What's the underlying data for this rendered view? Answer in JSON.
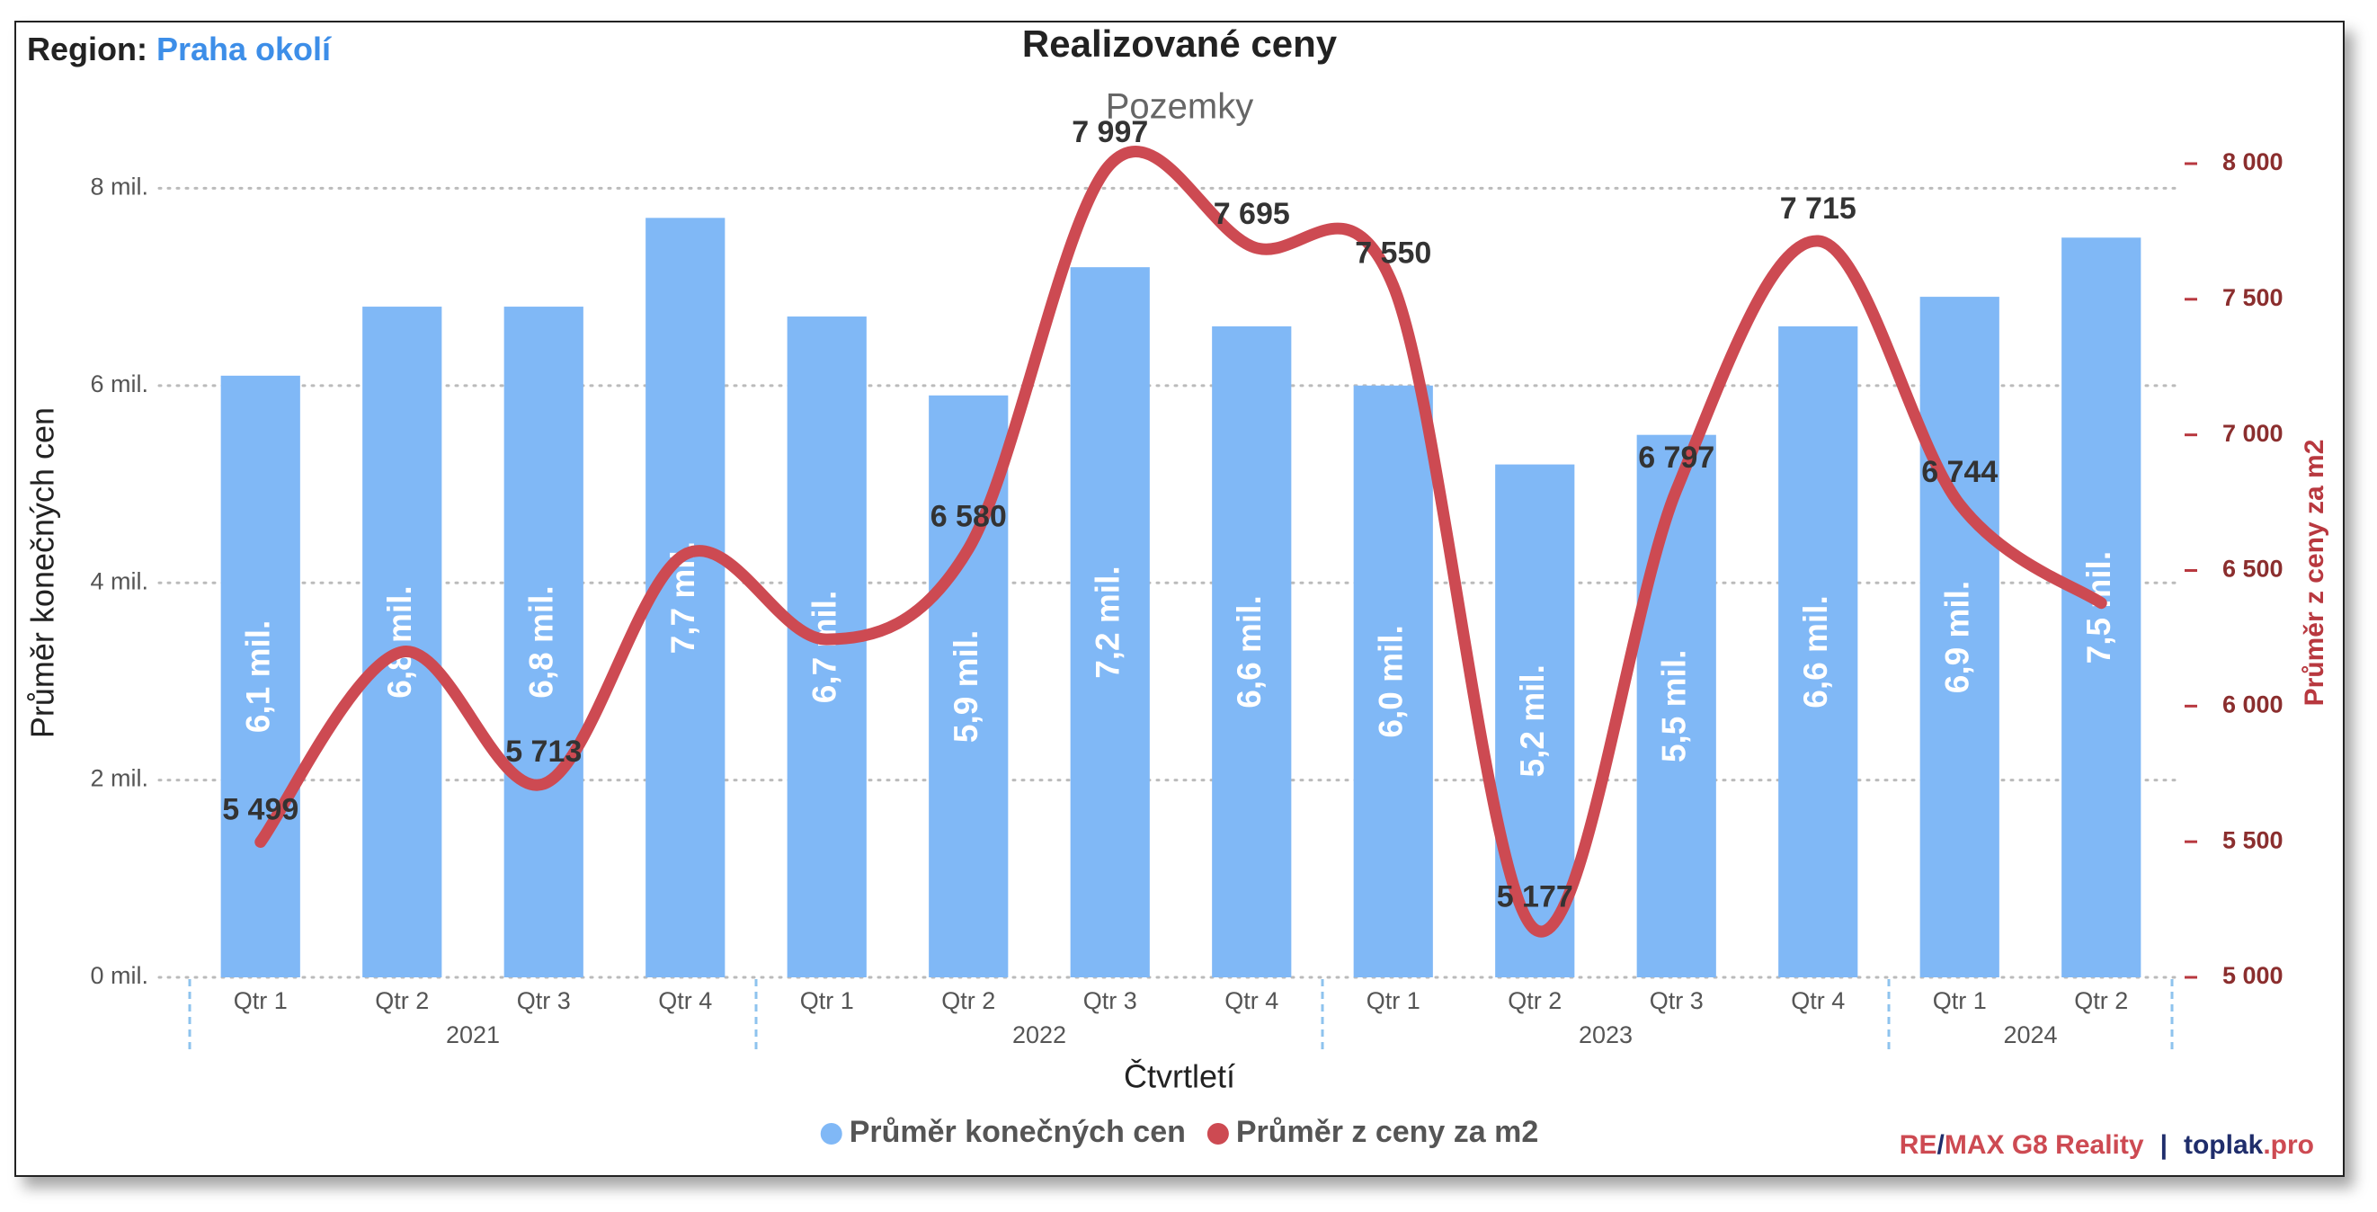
{
  "chart_data": {
    "type": "bar-line",
    "header": {
      "region_label": "Region:",
      "region": "Praha okolí"
    },
    "title": "Realizované ceny",
    "subtitle": "Pozemky",
    "xlabel": "Čtvrtletí",
    "ylabel": "Průměr konečných cen",
    "y2label": "Průměr z ceny za m2",
    "categories": [
      "Qtr 1",
      "Qtr 2",
      "Qtr 3",
      "Qtr 4",
      "Qtr 1",
      "Qtr 2",
      "Qtr 3",
      "Qtr 4",
      "Qtr 1",
      "Qtr 2",
      "Qtr 3",
      "Qtr 4",
      "Qtr 1",
      "Qtr 2"
    ],
    "x_groups": [
      "2021",
      "2021",
      "2021",
      "2021",
      "2022",
      "2022",
      "2022",
      "2022",
      "2023",
      "2023",
      "2023",
      "2023",
      "2024",
      "2024"
    ],
    "series": [
      {
        "name": "Průměr konečných cen",
        "type": "bar",
        "axis": "y",
        "color": "#80b8f6",
        "values": [
          6.1,
          6.8,
          6.8,
          7.7,
          6.7,
          5.9,
          7.2,
          6.6,
          6.0,
          5.2,
          5.5,
          6.6,
          6.9,
          7.5
        ],
        "value_labels": [
          "6,1 mil.",
          "6,8 mil.",
          "6,8 mil.",
          "7,7 mil.",
          "6,7 mil.",
          "5,9 mil.",
          "7,2 mil.",
          "6,6 mil.",
          "6,0 mil.",
          "5,2 mil.",
          "5,5 mil.",
          "6,6 mil.",
          "6,9 mil.",
          "7,5 mil."
        ]
      },
      {
        "name": "Průměr z ceny za m2",
        "type": "line",
        "axis": "y2",
        "color": "#cd4a52",
        "values": [
          5499,
          6200,
          5713,
          6560,
          6246,
          6580,
          7997,
          7695,
          7550,
          5177,
          6797,
          7715,
          6744,
          6380
        ],
        "value_labels": [
          "5 499",
          null,
          "5 713",
          null,
          null,
          "6 580",
          "7 997",
          "7 695",
          "7 550",
          "5 177",
          "6 797",
          "7 715",
          "6 744",
          null
        ]
      }
    ],
    "ylim": [
      0,
      8.25
    ],
    "yticks": [
      {
        "value": 0,
        "label": "0 mil."
      },
      {
        "value": 2,
        "label": "2 mil."
      },
      {
        "value": 4,
        "label": "4 mil."
      },
      {
        "value": 6,
        "label": "6 mil."
      },
      {
        "value": 8,
        "label": "8 mil."
      }
    ],
    "y2lim": [
      5000,
      8000
    ],
    "y2ticks": [
      {
        "value": 5000,
        "label": "5 000"
      },
      {
        "value": 5500,
        "label": "5 500"
      },
      {
        "value": 6000,
        "label": "6 000"
      },
      {
        "value": 6500,
        "label": "6 500"
      },
      {
        "value": 7000,
        "label": "7 000"
      },
      {
        "value": 7500,
        "label": "7 500"
      },
      {
        "value": 8000,
        "label": "8 000"
      }
    ],
    "grid": true,
    "legend": "bottom",
    "footer": {
      "brand_a": "RE",
      "brand_slash": "/",
      "brand_b": "MAX G8 Reality",
      "separator": "|",
      "site": "toplak",
      "site_tld": ".pro"
    }
  }
}
